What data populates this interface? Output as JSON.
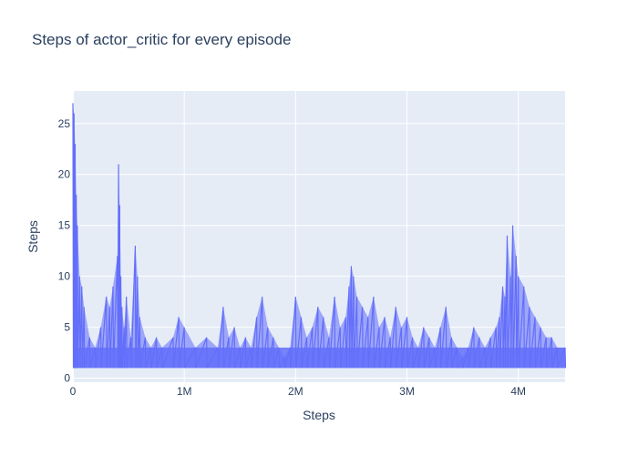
{
  "chart_data": {
    "type": "line",
    "title": "Steps of actor_critic for every episode",
    "xlabel": "Steps",
    "ylabel": "Steps",
    "xlim": [
      0,
      4420000
    ],
    "ylim": [
      -0.4,
      28.2
    ],
    "x_ticks": [
      {
        "value": 0,
        "label": "0"
      },
      {
        "value": 1000000,
        "label": "1M"
      },
      {
        "value": 2000000,
        "label": "2M"
      },
      {
        "value": 3000000,
        "label": "3M"
      },
      {
        "value": 4000000,
        "label": "4M"
      }
    ],
    "y_ticks": [
      {
        "value": 0,
        "label": "0"
      },
      {
        "value": 5,
        "label": "5"
      },
      {
        "value": 10,
        "label": "10"
      },
      {
        "value": 15,
        "label": "15"
      },
      {
        "value": 20,
        "label": "20"
      },
      {
        "value": 25,
        "label": "25"
      }
    ],
    "grid": true,
    "series": [
      {
        "color": "#636efa",
        "baseline": 1,
        "x": [
          0,
          10000,
          20000,
          30000,
          40000,
          60000,
          80000,
          100000,
          150000,
          200000,
          250000,
          300000,
          330000,
          360000,
          400000,
          410000,
          420000,
          430000,
          440000,
          460000,
          480000,
          520000,
          560000,
          580000,
          600000,
          650000,
          700000,
          750000,
          800000,
          900000,
          950000,
          1000000,
          1100000,
          1200000,
          1300000,
          1350000,
          1400000,
          1450000,
          1500000,
          1550000,
          1600000,
          1650000,
          1700000,
          1750000,
          1800000,
          1850000,
          1900000,
          1950000,
          2000000,
          2050000,
          2100000,
          2150000,
          2200000,
          2250000,
          2300000,
          2350000,
          2400000,
          2450000,
          2480000,
          2500000,
          2520000,
          2550000,
          2600000,
          2650000,
          2700000,
          2750000,
          2800000,
          2850000,
          2900000,
          2950000,
          3000000,
          3050000,
          3100000,
          3150000,
          3200000,
          3250000,
          3300000,
          3350000,
          3400000,
          3450000,
          3500000,
          3550000,
          3600000,
          3650000,
          3700000,
          3750000,
          3800000,
          3830000,
          3860000,
          3880000,
          3900000,
          3930000,
          3950000,
          3980000,
          4000000,
          4050000,
          4100000,
          4150000,
          4200000,
          4250000,
          4300000,
          4350000,
          4420000
        ],
        "y": [
          27,
          26,
          23,
          18,
          15,
          10,
          9,
          7,
          4,
          3,
          5,
          8,
          7,
          9,
          12,
          21,
          17,
          10,
          7,
          5,
          8,
          4,
          13,
          10,
          6,
          4,
          3,
          4,
          3,
          4,
          6,
          5,
          3,
          4,
          3,
          7,
          4,
          5,
          3,
          4,
          3,
          6,
          8,
          5,
          4,
          3,
          2,
          3,
          8,
          6,
          4,
          5,
          7,
          6,
          4,
          8,
          5,
          6,
          9,
          11,
          10,
          8,
          7,
          6,
          8,
          5,
          6,
          4,
          7,
          5,
          6,
          4,
          3,
          5,
          4,
          3,
          5,
          7,
          4,
          3,
          2,
          3,
          5,
          4,
          3,
          4,
          5,
          6,
          9,
          8,
          14,
          10,
          15,
          12,
          10,
          9,
          7,
          6,
          5,
          4,
          4,
          3,
          3
        ]
      }
    ]
  }
}
